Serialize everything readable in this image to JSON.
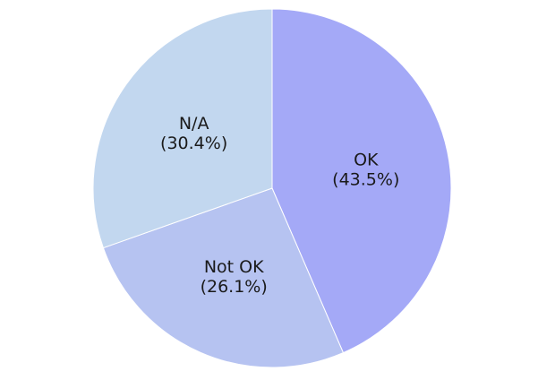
{
  "chart_data": {
    "type": "pie",
    "title": "",
    "start_angle_deg": 0,
    "direction": "clockwise",
    "slices": [
      {
        "label": "OK",
        "value": 43.5,
        "value_text": "(43.5%)",
        "color": "#a4a9f7"
      },
      {
        "label": "Not OK",
        "value": 26.1,
        "value_text": "(26.1%)",
        "color": "#b6c3f1"
      },
      {
        "label": "N/A",
        "value": 30.4,
        "value_text": "(30.4%)",
        "color": "#c2d7ef"
      }
    ],
    "legend": "none"
  }
}
